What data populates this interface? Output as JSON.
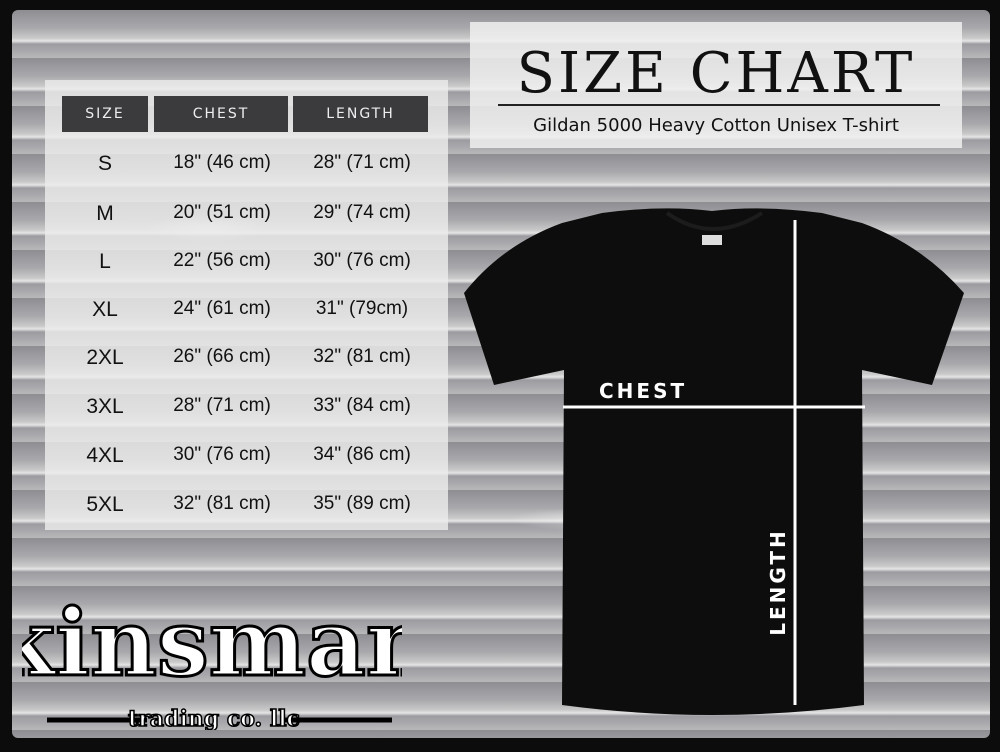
{
  "title": "SIZE CHART",
  "subtitle": "Gildan 5000 Heavy Cotton Unisex T-shirt",
  "table": {
    "headers": [
      "SIZE",
      "CHEST",
      "LENGTH"
    ],
    "rows": [
      [
        "S",
        "18\" (46 cm)",
        "28\" (71 cm)"
      ],
      [
        "M",
        "20\" (51 cm)",
        "29\" (74 cm)"
      ],
      [
        "L",
        "22\" (56 cm)",
        "30\" (76 cm)"
      ],
      [
        "XL",
        "24\" (61 cm)",
        "31\" (79cm)"
      ],
      [
        "2XL",
        "26\" (66 cm)",
        "32\" (81 cm)"
      ],
      [
        "3XL",
        "28\" (71 cm)",
        "33\" (84 cm)"
      ],
      [
        "4XL",
        "30\" (76 cm)",
        "34\" (86 cm)"
      ],
      [
        "5XL",
        "32\" (81 cm)",
        "35\" (89 cm)"
      ]
    ]
  },
  "diagram": {
    "chest_label": "CHEST",
    "length_label": "LENGTH",
    "shirt_color": "#0d0d0d"
  },
  "logo": {
    "name": "Kinsman",
    "tagline": "trading co. llc"
  }
}
